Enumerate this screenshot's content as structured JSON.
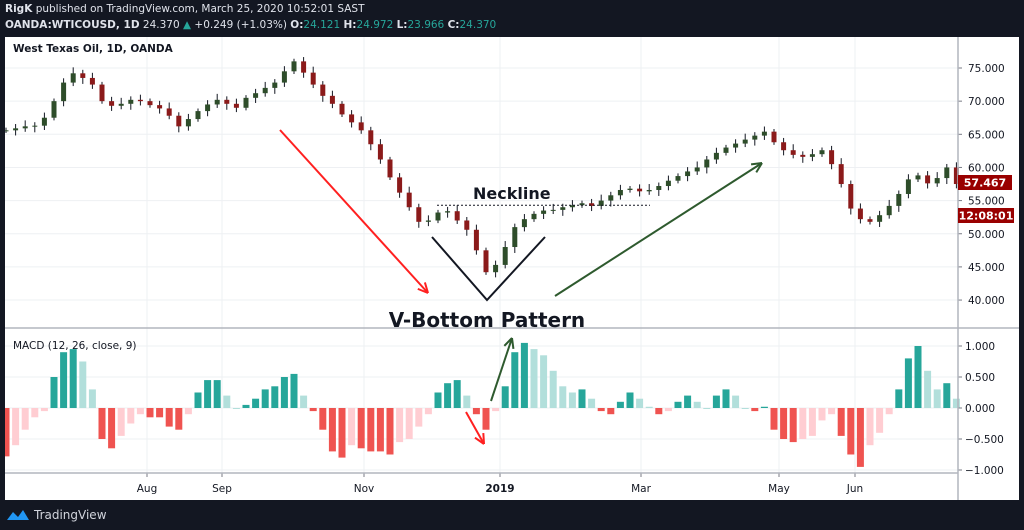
{
  "header": {
    "author": "RigK",
    "published": "published on TradingView.com, March 25, 2020 10:52:01 SAST",
    "symbol": "OANDA:WTICOUSD, 1D",
    "last": "24.370",
    "change": "+0.249 (+1.03%)",
    "o_label": "O:",
    "o": "24.121",
    "h_label": "H:",
    "h": "24.972",
    "l_label": "L:",
    "l": "23.966",
    "c_label": "C:",
    "c": "24.370"
  },
  "footer": {
    "brand": "TradingView",
    "logo_icon": "tradingview-logo-icon"
  },
  "colors": {
    "up": "#26a69a",
    "up_light": "#b2dfdb",
    "down": "#ef5350",
    "down_light": "#ffcdd2",
    "candle_up": "#2e4d2a",
    "candle_down": "#8b1a1a",
    "price_label": "#990000",
    "annot_red": "#ff2020",
    "annot_green": "#2e5a2e"
  },
  "chart_data": [
    {
      "type": "candlestick",
      "title": "West Texas Oil, 1D, OANDA",
      "x_ticks": [
        "Aug",
        "Sep",
        "Nov",
        "2019",
        "Mar",
        "May",
        "Jun"
      ],
      "y_ticks": [
        "75.000",
        "70.000",
        "65.000",
        "60.000",
        "55.000",
        "50.000",
        "45.000",
        "40.000"
      ],
      "ylim": [
        36,
        79
      ],
      "grid": true,
      "last_price_label": "57.467",
      "countdown_label": "12:08:01",
      "closes": [
        65.6,
        65.9,
        66.2,
        66.3,
        67.5,
        70,
        72.8,
        74.2,
        73.5,
        72.5,
        70,
        69.3,
        69.6,
        70.2,
        70,
        69.4,
        68.9,
        67.8,
        66.2,
        67.3,
        68.5,
        69.5,
        70.2,
        69.6,
        69,
        70.5,
        71.2,
        72,
        72.8,
        74.5,
        76,
        74.3,
        72.5,
        70.8,
        69.6,
        68,
        66.8,
        65.6,
        63.5,
        61.2,
        58.5,
        56.2,
        54,
        51.8,
        52,
        53.2,
        53.4,
        52,
        50.6,
        47.5,
        44.2,
        45.3,
        48,
        51,
        52.2,
        53,
        53.5,
        53.6,
        54,
        54.3,
        54.6,
        54.2,
        55,
        55.8,
        56.6,
        56.8,
        56.4,
        56.6,
        57.2,
        58,
        58.7,
        59.4,
        60,
        61.2,
        62.2,
        63,
        63.6,
        64.2,
        64.8,
        65.4,
        63.8,
        62.6,
        61.9,
        61.6,
        62,
        62.6,
        60.5,
        57.5,
        53.8,
        52.2,
        51.8,
        52.8,
        54.2,
        56,
        58.2,
        58.8,
        57.6,
        58.4,
        60,
        57.5
      ],
      "annotations": {
        "neckline": "Neckline",
        "pattern": "V-Bottom Pattern",
        "neckline_price": 54.3
      }
    },
    {
      "type": "bar",
      "title": "MACD (12, 26, close, 9)",
      "y_ticks": [
        "1.000",
        "0.500",
        "0.000",
        "−0.500",
        "−1.000"
      ],
      "ylim": [
        -1.2,
        1.35
      ],
      "values": [
        -0.78,
        -0.6,
        -0.35,
        -0.15,
        -0.05,
        0.5,
        0.9,
        0.95,
        0.75,
        0.3,
        -0.5,
        -0.65,
        -0.45,
        -0.25,
        -0.1,
        -0.15,
        -0.15,
        -0.3,
        -0.35,
        -0.1,
        0.25,
        0.45,
        0.45,
        0.2,
        0.0,
        0.05,
        0.15,
        0.3,
        0.35,
        0.5,
        0.55,
        0.2,
        -0.05,
        -0.35,
        -0.7,
        -0.8,
        -0.6,
        -0.65,
        -0.7,
        -0.7,
        -0.75,
        -0.55,
        -0.5,
        -0.3,
        -0.1,
        0.25,
        0.4,
        0.45,
        0.2,
        -0.1,
        -0.35,
        -0.05,
        0.35,
        0.9,
        1.05,
        0.95,
        0.85,
        0.6,
        0.35,
        0.25,
        0.3,
        0.15,
        -0.05,
        -0.1,
        0.1,
        0.25,
        0.15,
        0.02,
        -0.1,
        -0.05,
        0.1,
        0.2,
        0.1,
        0.0,
        0.2,
        0.3,
        0.2,
        0.0,
        -0.05,
        0.02,
        -0.35,
        -0.5,
        -0.55,
        -0.5,
        -0.45,
        -0.2,
        -0.1,
        -0.45,
        -0.75,
        -0.95,
        -0.6,
        -0.4,
        -0.1,
        0.3,
        0.8,
        1.0,
        0.6,
        0.3,
        0.4,
        0.15
      ]
    }
  ]
}
